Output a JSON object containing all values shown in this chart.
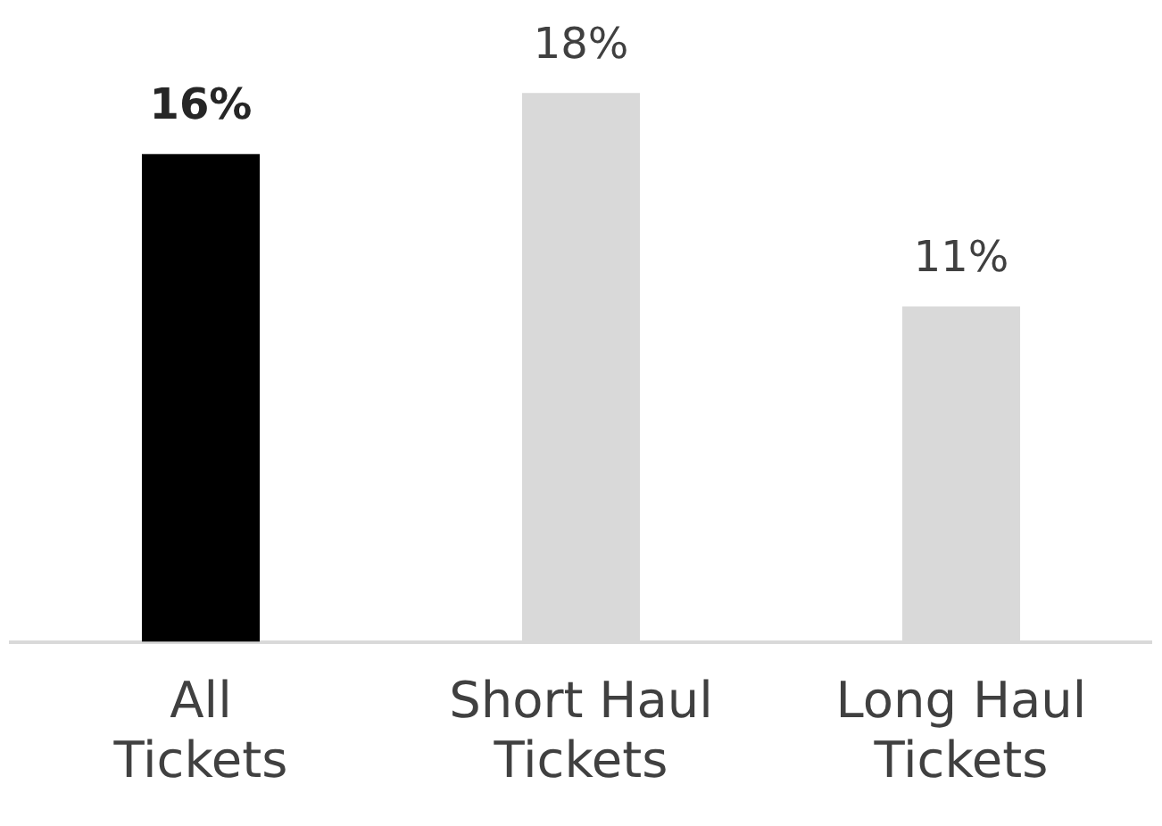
{
  "chart_data": {
    "type": "bar",
    "categories": [
      "All Tickets",
      "Short Haul Tickets",
      "Long Haul Tickets"
    ],
    "values": [
      16,
      18,
      11
    ],
    "colors": [
      "#000000",
      "#d9d9d9",
      "#d9d9d9"
    ],
    "value_labels": [
      "16%",
      "18%",
      "11%"
    ],
    "grid": false,
    "legend": false
  }
}
